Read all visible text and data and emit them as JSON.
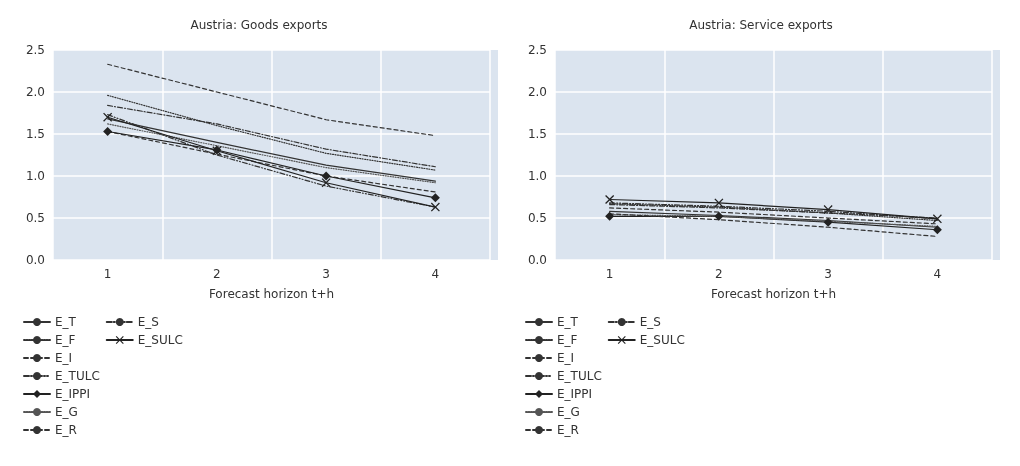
{
  "chart_data": [
    {
      "type": "line",
      "title": "Austria: Goods exports",
      "xlabel": "Forecast horizon t+h",
      "categories": [
        "1",
        "2",
        "3",
        "4"
      ],
      "ylim": [
        0,
        2.5
      ],
      "yticks": [
        {
          "value": 0,
          "label": "0.0"
        },
        {
          "value": 0.5,
          "label": "0.5"
        },
        {
          "value": 1,
          "label": "1.0"
        },
        {
          "value": 1.5,
          "label": "1.5"
        },
        {
          "value": 2,
          "label": "2.0"
        },
        {
          "value": 2.5,
          "label": "2.5"
        }
      ],
      "grid": true,
      "legend": "bottom",
      "series": [
        {
          "name": "E_T",
          "color": "#333333",
          "line_style": "solid",
          "marker": "none",
          "values": [
            1.68,
            1.4,
            1.13,
            0.94
          ]
        },
        {
          "name": "E_F",
          "color": "#333333",
          "line_style": "dotted",
          "marker": "none",
          "values": [
            1.96,
            1.6,
            1.27,
            1.07
          ]
        },
        {
          "name": "E_I",
          "color": "#333333",
          "line_style": "dashed",
          "marker": "none",
          "values": [
            1.53,
            1.26,
            1.0,
            0.81
          ]
        },
        {
          "name": "E_TULC",
          "color": "#333333",
          "line_style": "dashdotdot",
          "marker": "none",
          "values": [
            1.73,
            1.25,
            0.88,
            0.63
          ]
        },
        {
          "name": "E_IPPI",
          "color": "#222222",
          "line_style": "solid",
          "marker": "diamond",
          "values": [
            1.53,
            1.31,
            1.0,
            0.74
          ]
        },
        {
          "name": "E_G",
          "color": "#555555",
          "line_style": "dotted",
          "marker": "none",
          "values": [
            1.62,
            1.36,
            1.1,
            0.92
          ]
        },
        {
          "name": "E_R",
          "color": "#333333",
          "line_style": "dashed",
          "marker": "none",
          "values": [
            2.33,
            2.0,
            1.67,
            1.48
          ]
        },
        {
          "name": "E_S",
          "color": "#333333",
          "line_style": "dashdot",
          "marker": "none",
          "values": [
            1.84,
            1.62,
            1.32,
            1.11
          ]
        },
        {
          "name": "E_SULC",
          "color": "#222222",
          "line_style": "solid",
          "marker": "cross",
          "values": [
            1.7,
            1.3,
            0.92,
            0.63
          ]
        }
      ]
    },
    {
      "type": "line",
      "title": "Austria: Service exports",
      "xlabel": "Forecast horizon t+h",
      "categories": [
        "1",
        "2",
        "3",
        "4"
      ],
      "ylim": [
        0,
        2.5
      ],
      "yticks": [
        {
          "value": 0,
          "label": "0.0"
        },
        {
          "value": 0.5,
          "label": "0.5"
        },
        {
          "value": 1,
          "label": "1.0"
        },
        {
          "value": 1.5,
          "label": "1.5"
        },
        {
          "value": 2,
          "label": "2.0"
        },
        {
          "value": 2.5,
          "label": "2.5"
        }
      ],
      "grid": true,
      "legend": "bottom",
      "series": [
        {
          "name": "E_T",
          "color": "#333333",
          "line_style": "solid",
          "marker": "none",
          "values": [
            0.58,
            0.53,
            0.47,
            0.39
          ]
        },
        {
          "name": "E_F",
          "color": "#333333",
          "line_style": "dotted",
          "marker": "none",
          "values": [
            0.67,
            0.63,
            0.56,
            0.47
          ]
        },
        {
          "name": "E_I",
          "color": "#333333",
          "line_style": "dashed",
          "marker": "none",
          "values": [
            0.62,
            0.57,
            0.5,
            0.43
          ]
        },
        {
          "name": "E_TULC",
          "color": "#333333",
          "line_style": "dashdotdot",
          "marker": "none",
          "values": [
            0.68,
            0.64,
            0.58,
            0.49
          ]
        },
        {
          "name": "E_IPPI",
          "color": "#222222",
          "line_style": "solid",
          "marker": "diamond",
          "values": [
            0.52,
            0.52,
            0.45,
            0.36
          ]
        },
        {
          "name": "E_G",
          "color": "#555555",
          "line_style": "dotted",
          "marker": "none",
          "values": [
            0.54,
            0.52,
            0.46,
            0.4
          ]
        },
        {
          "name": "E_R",
          "color": "#333333",
          "line_style": "dashed",
          "marker": "none",
          "values": [
            0.55,
            0.48,
            0.39,
            0.28
          ]
        },
        {
          "name": "E_S",
          "color": "#333333",
          "line_style": "dashdot",
          "marker": "none",
          "values": [
            0.66,
            0.62,
            0.56,
            0.5
          ]
        },
        {
          "name": "E_SULC",
          "color": "#222222",
          "line_style": "solid",
          "marker": "cross",
          "values": [
            0.72,
            0.68,
            0.6,
            0.49
          ]
        }
      ]
    }
  ]
}
